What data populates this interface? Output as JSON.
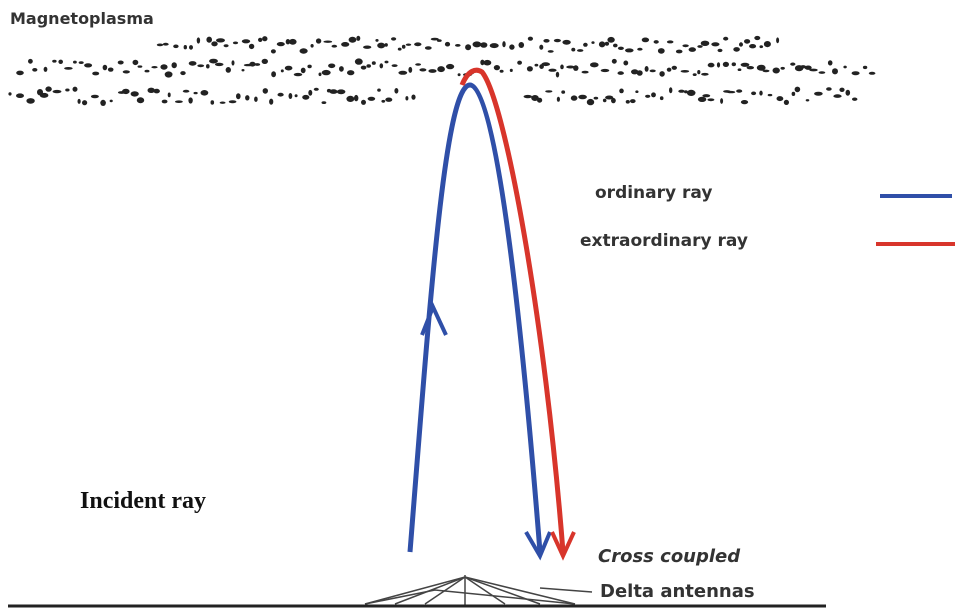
{
  "title": "Magnetoplasma",
  "legend": {
    "items": [
      {
        "label": "ordinary ray",
        "color": "#2f4fa8"
      },
      {
        "label": "extraordinary ray",
        "color": "#d8352b"
      }
    ]
  },
  "labels": {
    "incident": "Incident ray",
    "cross_coupled": "Cross coupled",
    "antennas": "Delta antennas"
  }
}
